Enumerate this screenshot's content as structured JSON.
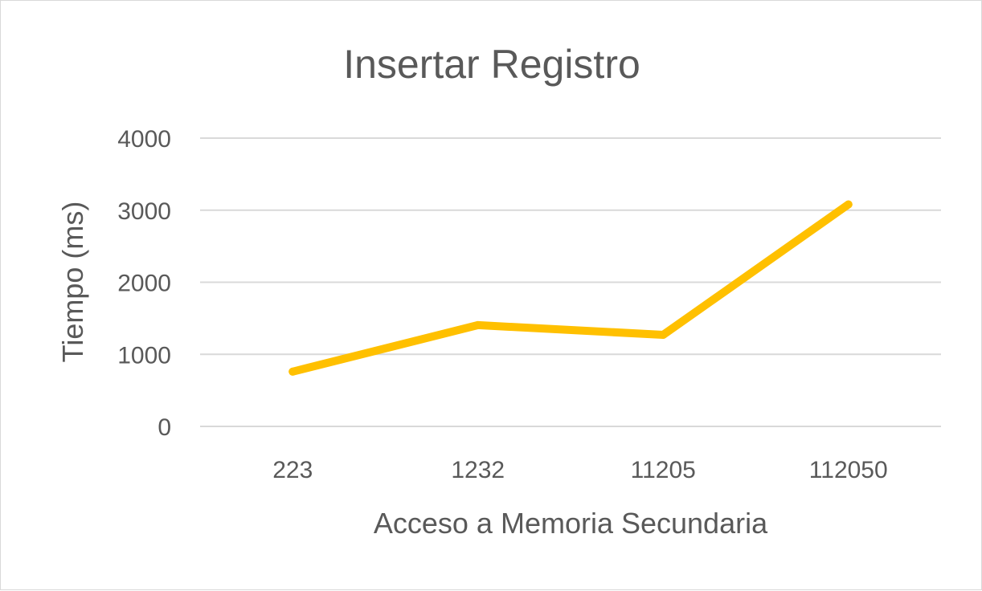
{
  "chart_data": {
    "type": "line",
    "title": "Insertar Registro",
    "xlabel": "Acceso a Memoria Secundaria",
    "ylabel": "Tiempo (ms)",
    "categories": [
      "223",
      "1232",
      "11205",
      "112050"
    ],
    "series": [
      {
        "values": [
          760,
          1405,
          1270,
          3080
        ]
      }
    ],
    "ylim": [
      0,
      4000
    ],
    "yticks": [
      "0",
      "1000",
      "2000",
      "3000",
      "4000"
    ],
    "grid": true,
    "legend": "none",
    "colors": {
      "line": "#FFC000",
      "text": "#595959",
      "grid": "#D9D9D9"
    }
  }
}
